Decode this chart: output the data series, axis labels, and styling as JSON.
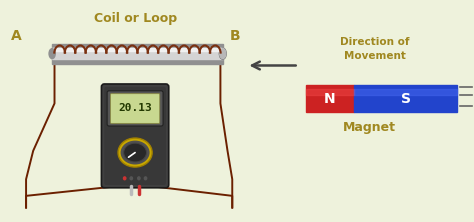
{
  "bg_color": "#eef2dc",
  "label_A": "A",
  "label_B": "B",
  "label_coil": "Coil or Loop",
  "label_direction": "Direction of\nMovement",
  "label_magnet": "Magnet",
  "label_N": "N",
  "label_S": "S",
  "label_reading": "20.13",
  "label_color": "#a08820",
  "coil_color_front": "#7a3010",
  "coil_color_back": "#a05030",
  "wire_color": "#6b2000",
  "rod_color_dark": "#888888",
  "rod_color_mid": "#c0c0c0",
  "rod_color_light": "#e0e0e0",
  "magnet_N_color": "#cc2222",
  "magnet_S_color": "#2244cc",
  "arrow_color": "#444444",
  "multimeter_body": "#3a3a3a",
  "multimeter_screen_bg": "#c8d890",
  "multimeter_screen_text": "#223800",
  "fig_width": 4.74,
  "fig_height": 2.22,
  "dpi": 100
}
